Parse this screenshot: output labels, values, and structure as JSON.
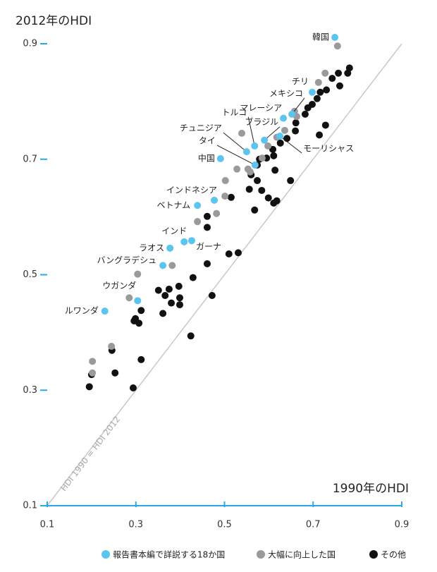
{
  "chart_data": {
    "type": "scatter",
    "ylabel": "2012年のHDI",
    "xlabel": "1990年のHDI",
    "annotation": "HDI 1990 = HDI 2012",
    "xlim": [
      0.1,
      0.9
    ],
    "ylim": [
      0.1,
      0.9
    ],
    "xticks": [
      0.1,
      0.3,
      0.5,
      0.7,
      0.9
    ],
    "yticks": [
      0.1,
      0.3,
      0.5,
      0.7,
      0.9
    ],
    "series": [
      {
        "name": "報告書本編で詳説する18か国",
        "color": "#5bc4ef",
        "point_labels": [
          "韓国",
          "チリ",
          "メキシコ",
          "マレーシア",
          "ブラジル",
          "トルコ",
          "チュニジア",
          "タイ",
          "中国",
          "モーリシャス",
          "インドネシア",
          "ベトナム",
          "インド",
          "ガーナ",
          "ラオス",
          "バングラデシュ",
          "ウガンダ",
          "ルワンダ"
        ],
        "x": [
          0.749,
          0.698,
          0.652,
          0.633,
          0.59,
          0.568,
          0.55,
          0.569,
          0.491,
          0.625,
          0.477,
          0.439,
          0.409,
          0.426,
          0.377,
          0.361,
          0.304,
          0.23
        ],
        "values": [
          0.911,
          0.816,
          0.778,
          0.771,
          0.733,
          0.723,
          0.713,
          0.69,
          0.701,
          0.74,
          0.629,
          0.62,
          0.557,
          0.559,
          0.546,
          0.516,
          0.455,
          0.437
        ]
      },
      {
        "name": "大幅に向上した国",
        "color": "#9a9a9a",
        "x": [
          0.755,
          0.727,
          0.712,
          0.658,
          0.663,
          0.636,
          0.618,
          0.598,
          0.585,
          0.539,
          0.558,
          0.528,
          0.502,
          0.501,
          0.482,
          0.439,
          0.382,
          0.304,
          0.285,
          0.245,
          0.202,
          0.202,
          0.553
        ],
        "values": [
          0.896,
          0.849,
          0.833,
          0.783,
          0.774,
          0.75,
          0.738,
          0.723,
          0.702,
          0.745,
          0.678,
          0.683,
          0.663,
          0.636,
          0.606,
          0.592,
          0.516,
          0.501,
          0.46,
          0.376,
          0.35,
          0.33,
          0.683
        ]
      },
      {
        "name": "その他",
        "color": "#111111",
        "x": [
          0.782,
          0.778,
          0.757,
          0.743,
          0.76,
          0.73,
          0.716,
          0.709,
          0.688,
          0.698,
          0.682,
          0.661,
          0.728,
          0.714,
          0.66,
          0.641,
          0.626,
          0.609,
          0.611,
          0.595,
          0.614,
          0.579,
          0.574,
          0.56,
          0.574,
          0.584,
          0.556,
          0.568,
          0.599,
          0.611,
          0.618,
          0.649,
          0.515,
          0.461,
          0.461,
          0.531,
          0.51,
          0.461,
          0.429,
          0.397,
          0.351,
          0.375,
          0.366,
          0.399,
          0.399,
          0.472,
          0.38,
          0.361,
          0.312,
          0.299,
          0.307,
          0.296,
          0.246,
          0.2,
          0.253,
          0.312,
          0.424,
          0.195,
          0.294
        ],
        "values": [
          0.858,
          0.849,
          0.849,
          0.84,
          0.827,
          0.82,
          0.816,
          0.805,
          0.789,
          0.795,
          0.778,
          0.763,
          0.759,
          0.742,
          0.749,
          0.736,
          0.728,
          0.717,
          0.706,
          0.702,
          0.681,
          0.7,
          0.69,
          0.673,
          0.663,
          0.646,
          0.648,
          0.612,
          0.633,
          0.624,
          0.628,
          0.663,
          0.634,
          0.601,
          0.582,
          0.538,
          0.536,
          0.519,
          0.495,
          0.48,
          0.473,
          0.475,
          0.464,
          0.46,
          0.448,
          0.464,
          0.451,
          0.433,
          0.438,
          0.424,
          0.416,
          0.42,
          0.369,
          0.327,
          0.33,
          0.353,
          0.394,
          0.306,
          0.304
        ]
      }
    ]
  }
}
